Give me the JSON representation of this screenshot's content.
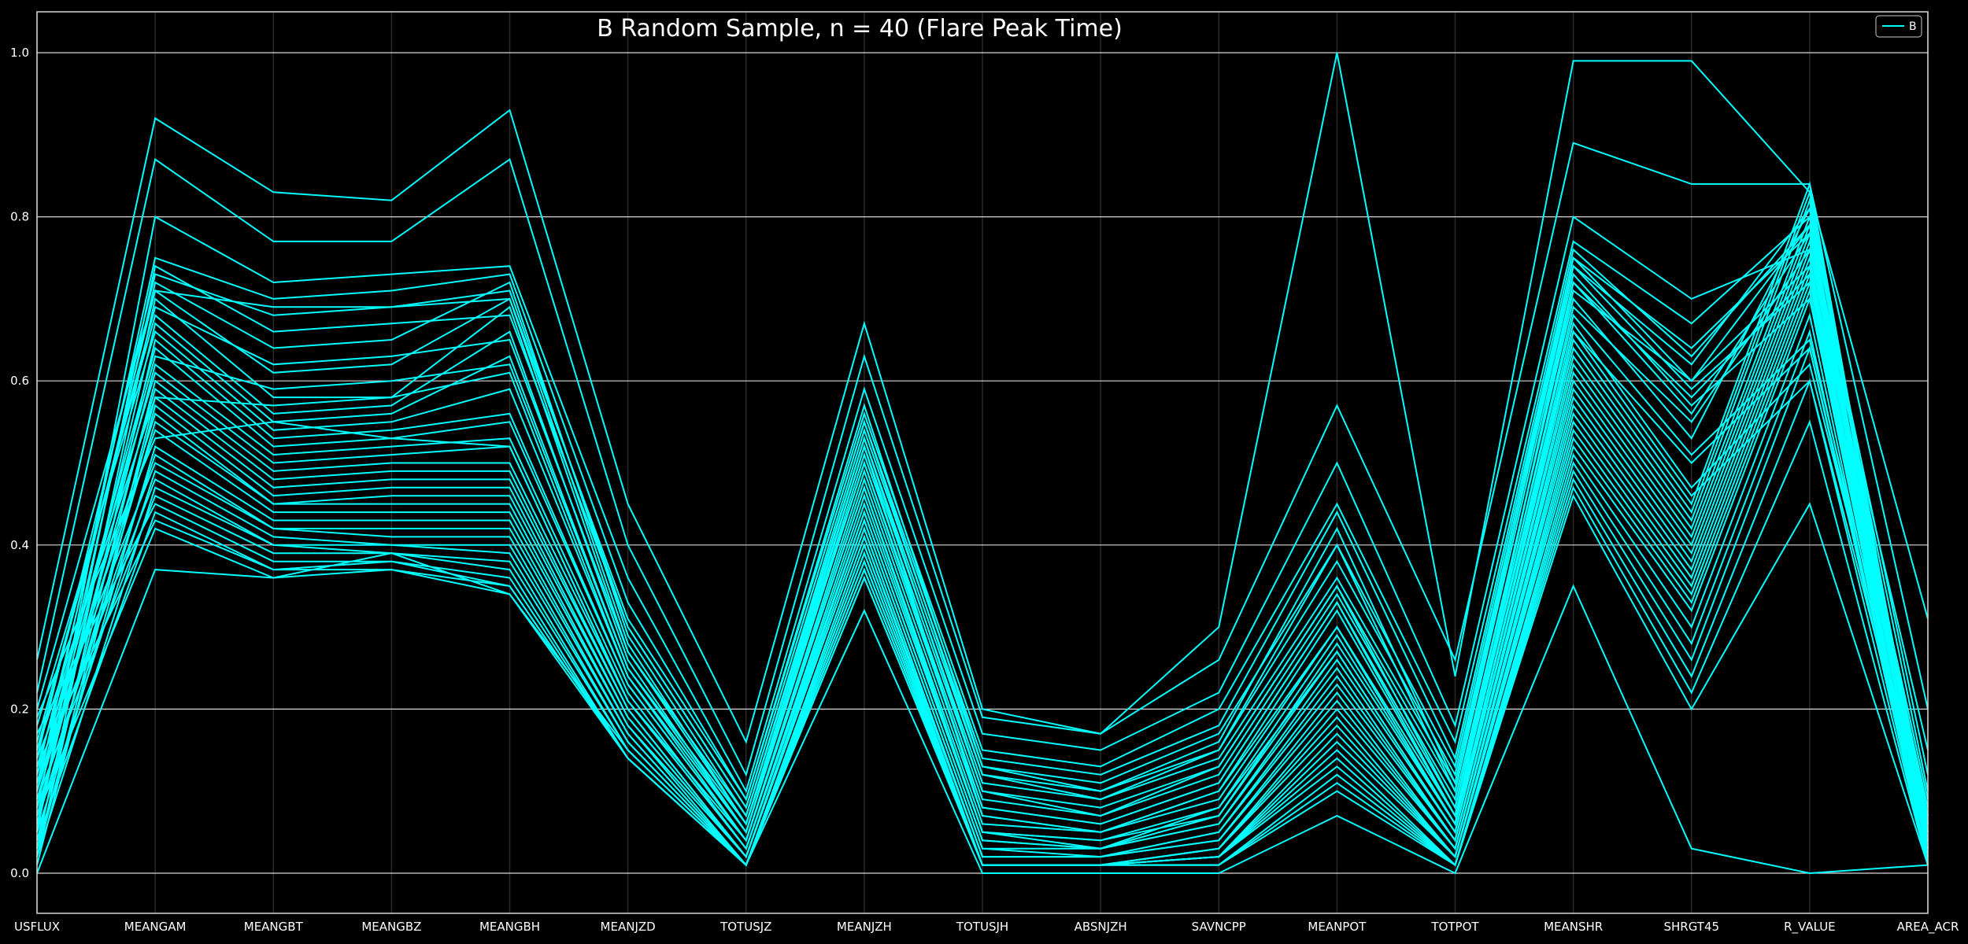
{
  "chart_data": {
    "type": "line",
    "subtype": "parallel-coordinates",
    "title": "B Random Sample, n = 40 (Flare Peak Time)",
    "categories": [
      "USFLUX",
      "MEANGAM",
      "MEANGBT",
      "MEANGBZ",
      "MEANGBH",
      "MEANJZD",
      "TOTUSJZ",
      "MEANJZH",
      "TOTUSJH",
      "ABSNJZH",
      "SAVNCPP",
      "MEANPOT",
      "TOTPOT",
      "MEANSHR",
      "SHRGT45",
      "R_VALUE",
      "AREA_ACR"
    ],
    "ylim": [
      0,
      1.0
    ],
    "yticks": [
      "0.0",
      "0.2",
      "0.4",
      "0.6",
      "0.8",
      "1.0"
    ],
    "grid": true,
    "legend": {
      "entries": [
        "B"
      ],
      "position": "top-right"
    },
    "colors": {
      "background": "#000000",
      "line": "#00FFFF",
      "grid": "#D9D9D9",
      "text": "#FFFFFF"
    },
    "series": [
      {
        "values": [
          0.0,
          0.37,
          0.36,
          0.39,
          0.34,
          0.15,
          0.01,
          0.32,
          0.0,
          0.0,
          0.0,
          0.07,
          0.0,
          0.35,
          0.03,
          0.0,
          0.01
        ]
      },
      {
        "values": [
          0.26,
          0.92,
          0.83,
          0.82,
          0.93,
          0.45,
          0.16,
          0.67,
          0.2,
          0.17,
          0.3,
          1.0,
          0.24,
          0.99,
          0.99,
          0.83,
          0.31
        ]
      },
      {
        "values": [
          0.22,
          0.87,
          0.77,
          0.77,
          0.87,
          0.4,
          0.12,
          0.63,
          0.19,
          0.17,
          0.26,
          0.57,
          0.26,
          0.89,
          0.84,
          0.84,
          0.2
        ]
      },
      {
        "values": [
          0.05,
          0.8,
          0.72,
          0.73,
          0.74,
          0.36,
          0.1,
          0.59,
          0.17,
          0.15,
          0.22,
          0.5,
          0.18,
          0.8,
          0.7,
          0.76,
          0.15
        ]
      },
      {
        "values": [
          0.1,
          0.75,
          0.7,
          0.71,
          0.73,
          0.33,
          0.09,
          0.56,
          0.15,
          0.13,
          0.2,
          0.45,
          0.16,
          0.77,
          0.67,
          0.8,
          0.12
        ]
      },
      {
        "values": [
          0.14,
          0.73,
          0.68,
          0.69,
          0.71,
          0.3,
          0.08,
          0.55,
          0.14,
          0.12,
          0.18,
          0.44,
          0.14,
          0.76,
          0.63,
          0.79,
          0.1
        ]
      },
      {
        "values": [
          0.08,
          0.72,
          0.64,
          0.65,
          0.72,
          0.29,
          0.07,
          0.54,
          0.13,
          0.11,
          0.17,
          0.4,
          0.13,
          0.75,
          0.6,
          0.74,
          0.09
        ]
      },
      {
        "values": [
          0.12,
          0.71,
          0.61,
          0.62,
          0.7,
          0.28,
          0.06,
          0.53,
          0.12,
          0.1,
          0.15,
          0.38,
          0.12,
          0.74,
          0.59,
          0.72,
          0.08
        ]
      },
      {
        "values": [
          0.03,
          0.7,
          0.58,
          0.58,
          0.69,
          0.27,
          0.06,
          0.52,
          0.11,
          0.09,
          0.14,
          0.36,
          0.11,
          0.73,
          0.57,
          0.7,
          0.07
        ]
      },
      {
        "values": [
          0.16,
          0.68,
          0.56,
          0.57,
          0.66,
          0.26,
          0.05,
          0.51,
          0.1,
          0.08,
          0.13,
          0.35,
          0.1,
          0.72,
          0.56,
          0.78,
          0.06
        ]
      },
      {
        "values": [
          0.06,
          0.67,
          0.55,
          0.56,
          0.63,
          0.25,
          0.05,
          0.5,
          0.09,
          0.07,
          0.12,
          0.34,
          0.09,
          0.7,
          0.53,
          0.81,
          0.06
        ]
      },
      {
        "values": [
          0.18,
          0.66,
          0.54,
          0.55,
          0.59,
          0.24,
          0.04,
          0.49,
          0.08,
          0.06,
          0.11,
          0.33,
          0.08,
          0.68,
          0.51,
          0.65,
          0.05
        ]
      },
      {
        "values": [
          0.02,
          0.65,
          0.53,
          0.54,
          0.56,
          0.23,
          0.04,
          0.48,
          0.07,
          0.05,
          0.1,
          0.32,
          0.07,
          0.67,
          0.47,
          0.62,
          0.05
        ]
      },
      {
        "values": [
          0.11,
          0.64,
          0.52,
          0.53,
          0.55,
          0.23,
          0.04,
          0.47,
          0.06,
          0.05,
          0.09,
          0.3,
          0.07,
          0.66,
          0.46,
          0.6,
          0.04
        ]
      },
      {
        "values": [
          0.07,
          0.62,
          0.51,
          0.52,
          0.53,
          0.22,
          0.03,
          0.46,
          0.05,
          0.04,
          0.08,
          0.29,
          0.06,
          0.65,
          0.45,
          0.84,
          0.04
        ]
      },
      {
        "values": [
          0.13,
          0.61,
          0.5,
          0.51,
          0.52,
          0.21,
          0.03,
          0.45,
          0.05,
          0.04,
          0.07,
          0.28,
          0.06,
          0.64,
          0.44,
          0.83,
          0.03
        ]
      },
      {
        "values": [
          0.04,
          0.6,
          0.49,
          0.5,
          0.5,
          0.21,
          0.03,
          0.44,
          0.04,
          0.03,
          0.07,
          0.27,
          0.05,
          0.63,
          0.43,
          0.82,
          0.03
        ]
      },
      {
        "values": [
          0.09,
          0.59,
          0.48,
          0.49,
          0.49,
          0.2,
          0.02,
          0.44,
          0.04,
          0.03,
          0.06,
          0.26,
          0.05,
          0.62,
          0.42,
          0.8,
          0.03
        ]
      },
      {
        "values": [
          0.15,
          0.58,
          0.47,
          0.48,
          0.48,
          0.2,
          0.02,
          0.43,
          0.03,
          0.03,
          0.06,
          0.25,
          0.04,
          0.61,
          0.41,
          0.79,
          0.02
        ]
      },
      {
        "values": [
          0.01,
          0.57,
          0.46,
          0.47,
          0.47,
          0.19,
          0.02,
          0.43,
          0.03,
          0.02,
          0.05,
          0.24,
          0.04,
          0.6,
          0.4,
          0.78,
          0.02
        ]
      },
      {
        "values": [
          0.1,
          0.56,
          0.45,
          0.46,
          0.46,
          0.19,
          0.02,
          0.42,
          0.02,
          0.02,
          0.05,
          0.23,
          0.04,
          0.59,
          0.39,
          0.77,
          0.02
        ]
      },
      {
        "values": [
          0.06,
          0.55,
          0.45,
          0.45,
          0.45,
          0.18,
          0.02,
          0.42,
          0.02,
          0.02,
          0.04,
          0.22,
          0.03,
          0.58,
          0.38,
          0.76,
          0.02
        ]
      },
      {
        "values": [
          0.12,
          0.54,
          0.44,
          0.44,
          0.44,
          0.18,
          0.01,
          0.41,
          0.02,
          0.02,
          0.04,
          0.21,
          0.03,
          0.57,
          0.37,
          0.75,
          0.01
        ]
      },
      {
        "values": [
          0.03,
          0.52,
          0.43,
          0.43,
          0.43,
          0.17,
          0.01,
          0.41,
          0.01,
          0.01,
          0.03,
          0.2,
          0.03,
          0.56,
          0.36,
          0.74,
          0.01
        ]
      },
      {
        "values": [
          0.08,
          0.51,
          0.42,
          0.42,
          0.42,
          0.17,
          0.01,
          0.4,
          0.01,
          0.01,
          0.03,
          0.19,
          0.02,
          0.55,
          0.35,
          0.73,
          0.01
        ]
      },
      {
        "values": [
          0.14,
          0.5,
          0.42,
          0.41,
          0.41,
          0.16,
          0.01,
          0.4,
          0.01,
          0.01,
          0.03,
          0.18,
          0.02,
          0.54,
          0.34,
          0.72,
          0.01
        ]
      },
      {
        "values": [
          0.05,
          0.49,
          0.41,
          0.4,
          0.4,
          0.16,
          0.01,
          0.39,
          0.01,
          0.01,
          0.02,
          0.17,
          0.02,
          0.53,
          0.33,
          0.71,
          0.01
        ]
      },
      {
        "values": [
          0.11,
          0.48,
          0.4,
          0.4,
          0.39,
          0.15,
          0.01,
          0.39,
          0.01,
          0.01,
          0.02,
          0.16,
          0.02,
          0.52,
          0.32,
          0.7,
          0.01
        ]
      },
      {
        "values": [
          0.02,
          0.47,
          0.4,
          0.39,
          0.38,
          0.15,
          0.01,
          0.38,
          0.01,
          0.01,
          0.02,
          0.15,
          0.01,
          0.51,
          0.3,
          0.68,
          0.01
        ]
      },
      {
        "values": [
          0.09,
          0.46,
          0.39,
          0.39,
          0.37,
          0.14,
          0.01,
          0.38,
          0.01,
          0.01,
          0.02,
          0.14,
          0.01,
          0.5,
          0.28,
          0.66,
          0.01
        ]
      },
      {
        "values": [
          0.17,
          0.45,
          0.38,
          0.38,
          0.36,
          0.14,
          0.01,
          0.37,
          0.01,
          0.01,
          0.02,
          0.13,
          0.01,
          0.49,
          0.26,
          0.64,
          0.01
        ]
      },
      {
        "values": [
          0.04,
          0.44,
          0.37,
          0.38,
          0.35,
          0.14,
          0.01,
          0.37,
          0.01,
          0.01,
          0.01,
          0.12,
          0.01,
          0.48,
          0.24,
          0.6,
          0.01
        ]
      },
      {
        "values": [
          0.13,
          0.43,
          0.37,
          0.37,
          0.35,
          0.14,
          0.01,
          0.36,
          0.01,
          0.01,
          0.01,
          0.11,
          0.01,
          0.47,
          0.22,
          0.55,
          0.01
        ]
      },
      {
        "values": [
          0.07,
          0.42,
          0.36,
          0.37,
          0.34,
          0.14,
          0.01,
          0.36,
          0.01,
          0.01,
          0.01,
          0.1,
          0.01,
          0.46,
          0.2,
          0.45,
          0.01
        ]
      },
      {
        "values": [
          0.19,
          0.53,
          0.55,
          0.53,
          0.52,
          0.21,
          0.04,
          0.47,
          0.05,
          0.03,
          0.08,
          0.27,
          0.05,
          0.66,
          0.5,
          0.64,
          0.03
        ]
      },
      {
        "values": [
          0.02,
          0.58,
          0.57,
          0.58,
          0.61,
          0.24,
          0.05,
          0.52,
          0.07,
          0.05,
          0.1,
          0.3,
          0.06,
          0.72,
          0.58,
          0.73,
          0.04
        ]
      },
      {
        "values": [
          0.1,
          0.63,
          0.59,
          0.6,
          0.62,
          0.25,
          0.06,
          0.5,
          0.08,
          0.06,
          0.11,
          0.33,
          0.07,
          0.69,
          0.55,
          0.76,
          0.05
        ]
      },
      {
        "values": [
          0.15,
          0.69,
          0.62,
          0.63,
          0.65,
          0.27,
          0.07,
          0.53,
          0.1,
          0.07,
          0.13,
          0.35,
          0.08,
          0.71,
          0.6,
          0.79,
          0.05
        ]
      },
      {
        "values": [
          0.05,
          0.74,
          0.66,
          0.67,
          0.68,
          0.3,
          0.08,
          0.55,
          0.12,
          0.09,
          0.15,
          0.4,
          0.1,
          0.74,
          0.62,
          0.81,
          0.06
        ]
      },
      {
        "values": [
          0.2,
          0.71,
          0.69,
          0.69,
          0.7,
          0.31,
          0.09,
          0.57,
          0.13,
          0.1,
          0.16,
          0.42,
          0.11,
          0.75,
          0.64,
          0.78,
          0.07
        ]
      }
    ]
  }
}
